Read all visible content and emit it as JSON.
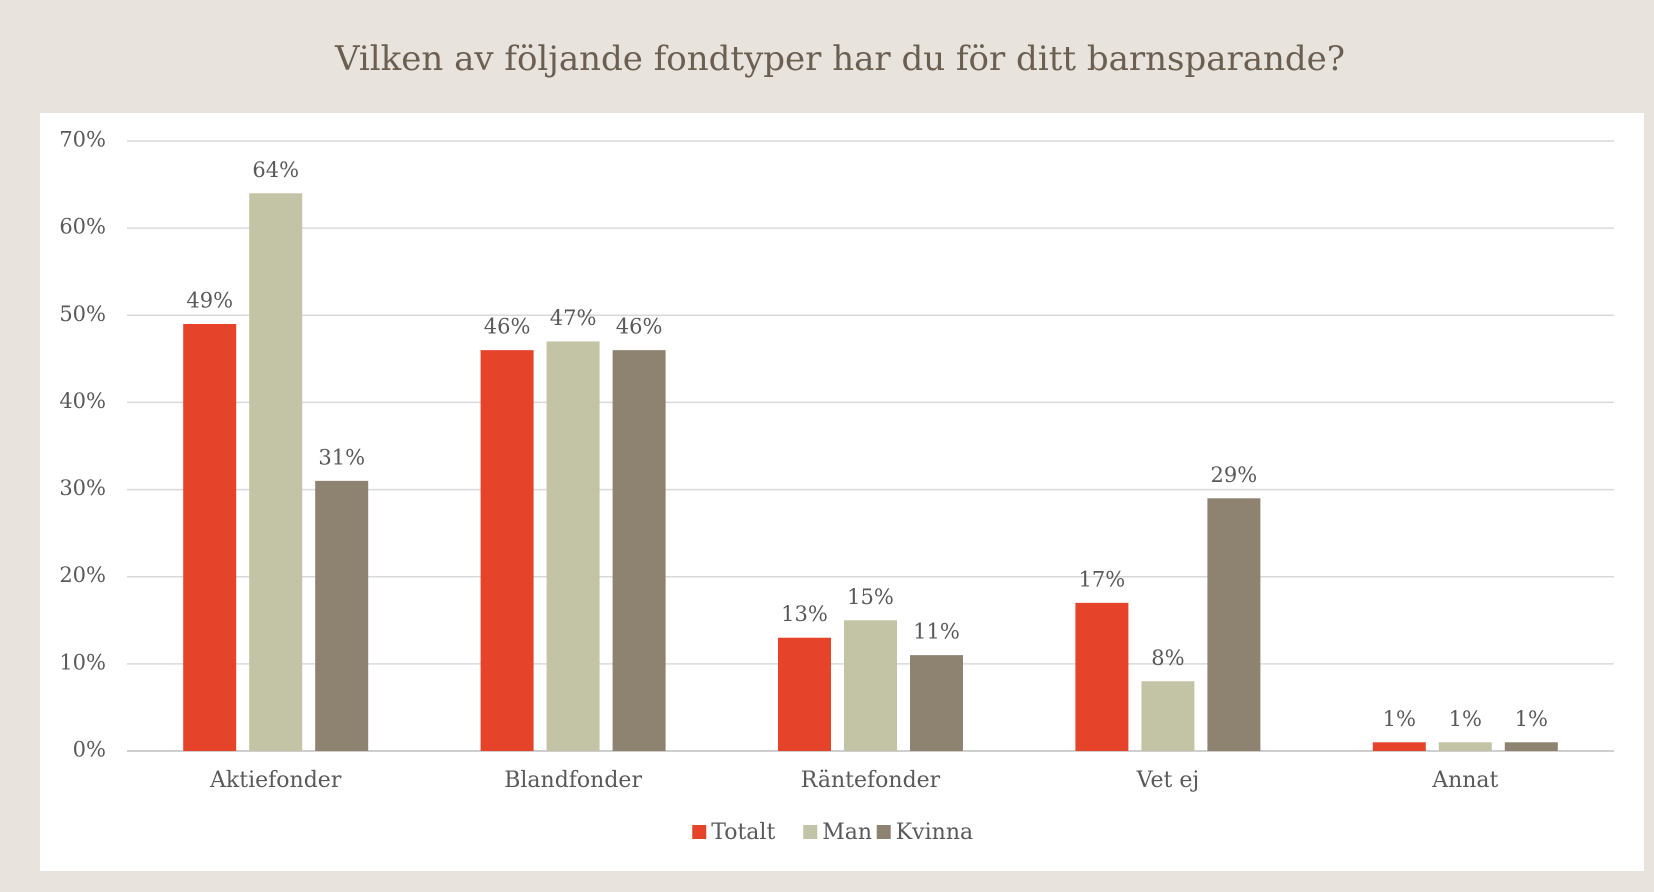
{
  "chart_data": {
    "type": "bar",
    "title": "Vilken av följande fondtyper har du för ditt barnsparande?",
    "categories": [
      "Aktiefonder",
      "Blandfonder",
      "Räntefonder",
      "Vet ej",
      "Annat"
    ],
    "series": [
      {
        "name": "Totalt",
        "color": "#e5432a",
        "values": [
          49,
          46,
          13,
          17,
          1
        ],
        "value_labels": [
          "49%",
          "46%",
          "13%",
          "17%",
          "1%"
        ]
      },
      {
        "name": "Man",
        "color": "#c3c4a5",
        "values": [
          64,
          47,
          15,
          8,
          1
        ],
        "value_labels": [
          "64%",
          "47%",
          "15%",
          "8%",
          "1%"
        ]
      },
      {
        "name": "Kvinna",
        "color": "#8e8270",
        "values": [
          31,
          46,
          11,
          29,
          1
        ],
        "value_labels": [
          "31%",
          "46%",
          "11%",
          "29%",
          "1%"
        ]
      }
    ],
    "ylim": [
      0,
      70
    ],
    "yticks": [
      {
        "value": 0,
        "label": "0%"
      },
      {
        "value": 10,
        "label": "10%"
      },
      {
        "value": 20,
        "label": "20%"
      },
      {
        "value": 30,
        "label": "30%"
      },
      {
        "value": 40,
        "label": "40%"
      },
      {
        "value": 50,
        "label": "50%"
      },
      {
        "value": 60,
        "label": "60%"
      },
      {
        "value": 70,
        "label": "70%"
      }
    ],
    "grid": true,
    "legend": "bottom"
  }
}
